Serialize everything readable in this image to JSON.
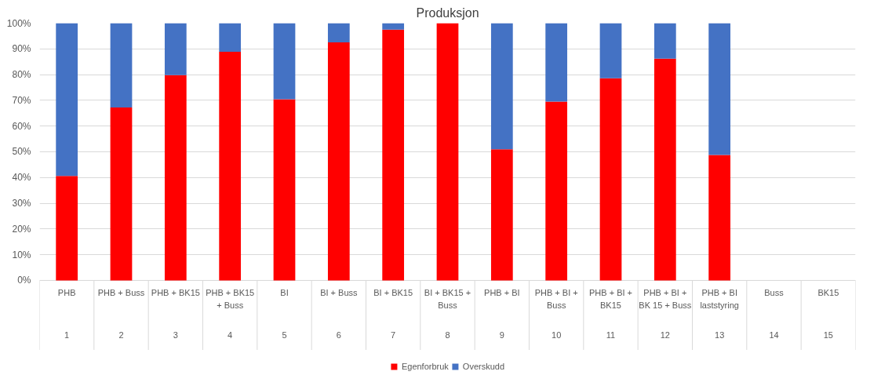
{
  "chart_data": {
    "type": "bar",
    "title": "Produksjon",
    "stacked": true,
    "categories": [
      "PHB\n1",
      "PHB + Buss\n2",
      "PHB + BK15\n3",
      "PHB + BK15\n+ Buss\n4",
      "BI\n5",
      "BI + Buss\n6",
      "BI + BK15\n7",
      "BI + BK15 +\nBuss\n8",
      "PHB + BI\n9",
      "PHB + BI +\nBuss\n10",
      "PHB + BI +\nBK15\n11",
      "PHB + BI +\nBK 15 + Buss\n12",
      "PHB + BI\nlaststyring\n13",
      "Buss\n14",
      "BK15\n15"
    ],
    "series": [
      {
        "name": "Egenforbruk",
        "color": "#ff0000",
        "values": [
          40.6,
          67.2,
          79.8,
          88.9,
          70.4,
          92.5,
          97.5,
          100,
          51.0,
          69.5,
          78.6,
          86.2,
          48.8,
          null,
          null
        ]
      },
      {
        "name": "Overskudd",
        "color": "#4472c4",
        "values": [
          59.4,
          32.8,
          20.2,
          11.1,
          29.6,
          7.5,
          2.5,
          0,
          49.0,
          30.5,
          21.4,
          13.8,
          51.2,
          null,
          null
        ]
      }
    ],
    "ylim": [
      0,
      100
    ],
    "yticks": [
      {
        "value": 0,
        "label": "0%"
      },
      {
        "value": 10,
        "label": "10%"
      },
      {
        "value": 20,
        "label": "20%"
      },
      {
        "value": 30,
        "label": "30%"
      },
      {
        "value": 40,
        "label": "40%"
      },
      {
        "value": 50,
        "label": "50%"
      },
      {
        "value": 60,
        "label": "60%"
      },
      {
        "value": 70,
        "label": "70%"
      },
      {
        "value": 80,
        "label": "80%"
      },
      {
        "value": 90,
        "label": "90%"
      },
      {
        "value": 100,
        "label": "100%"
      }
    ],
    "grid": "y",
    "legend": "bottom"
  }
}
